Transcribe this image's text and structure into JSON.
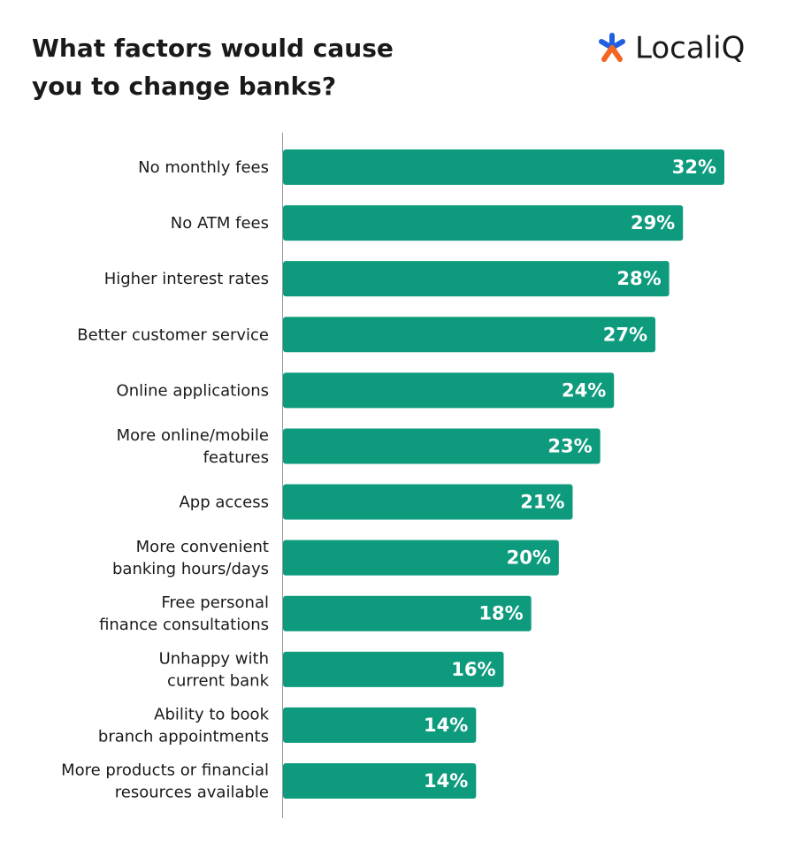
{
  "logo": "LocaliQ",
  "chart_data": {
    "type": "bar",
    "orientation": "horizontal",
    "title": [
      "What factors would cause",
      "you to change banks?"
    ],
    "categories": [
      [
        "No monthly fees"
      ],
      [
        "No ATM fees"
      ],
      [
        "Higher interest rates"
      ],
      [
        "Better customer service"
      ],
      [
        "Online applications"
      ],
      [
        "More online/mobile",
        "features"
      ],
      [
        "App access"
      ],
      [
        "More convenient",
        "banking hours/days"
      ],
      [
        "Free personal",
        "finance consultations"
      ],
      [
        "Unhappy with",
        "current bank"
      ],
      [
        "Ability to book",
        "branch appointments"
      ],
      [
        "More products or financial",
        "resources available"
      ]
    ],
    "values": [
      32,
      29,
      28,
      27,
      24,
      23,
      21,
      20,
      18,
      16,
      14,
      14
    ],
    "value_labels": [
      "32%",
      "29%",
      "28%",
      "27%",
      "24%",
      "23%",
      "21%",
      "20%",
      "18%",
      "16%",
      "14%",
      "14%"
    ],
    "color": "#0e9b7d"
  }
}
